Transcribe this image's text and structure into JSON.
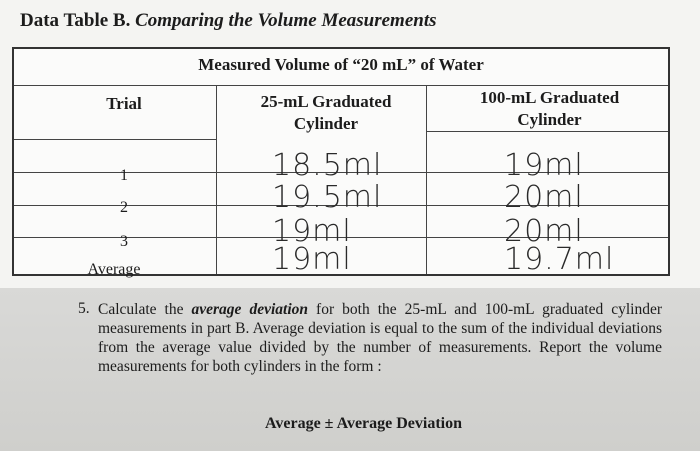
{
  "header": {
    "title_bold": "Data Table B.",
    "title_italic": "Comparing the Volume Measurements"
  },
  "table": {
    "caption": "Measured Volume of “20 mL” of Water",
    "columns": [
      "Trial",
      "25-mL Graduated Cylinder",
      "100-mL Graduated Cylinder"
    ],
    "rows": [
      [
        "1",
        "18.5ml",
        "19ml"
      ],
      [
        "2",
        "19.5ml",
        "20ml"
      ],
      [
        "3",
        "19ml",
        "20ml"
      ],
      [
        "Average",
        "19ml",
        "19.7ml"
      ]
    ]
  },
  "question": {
    "number": "5.",
    "text_before": "Calculate the",
    "emphasis": "average deviation",
    "text_after": "for both the 25-mL and 100-mL graduated cylinder measurements in part B. Average deviation is equal to the sum of the individual deviations from the average value divided by the number of measurements. Report the volume measurements for both cylinders in the form :",
    "formula": "Average ± Average Deviation"
  }
}
